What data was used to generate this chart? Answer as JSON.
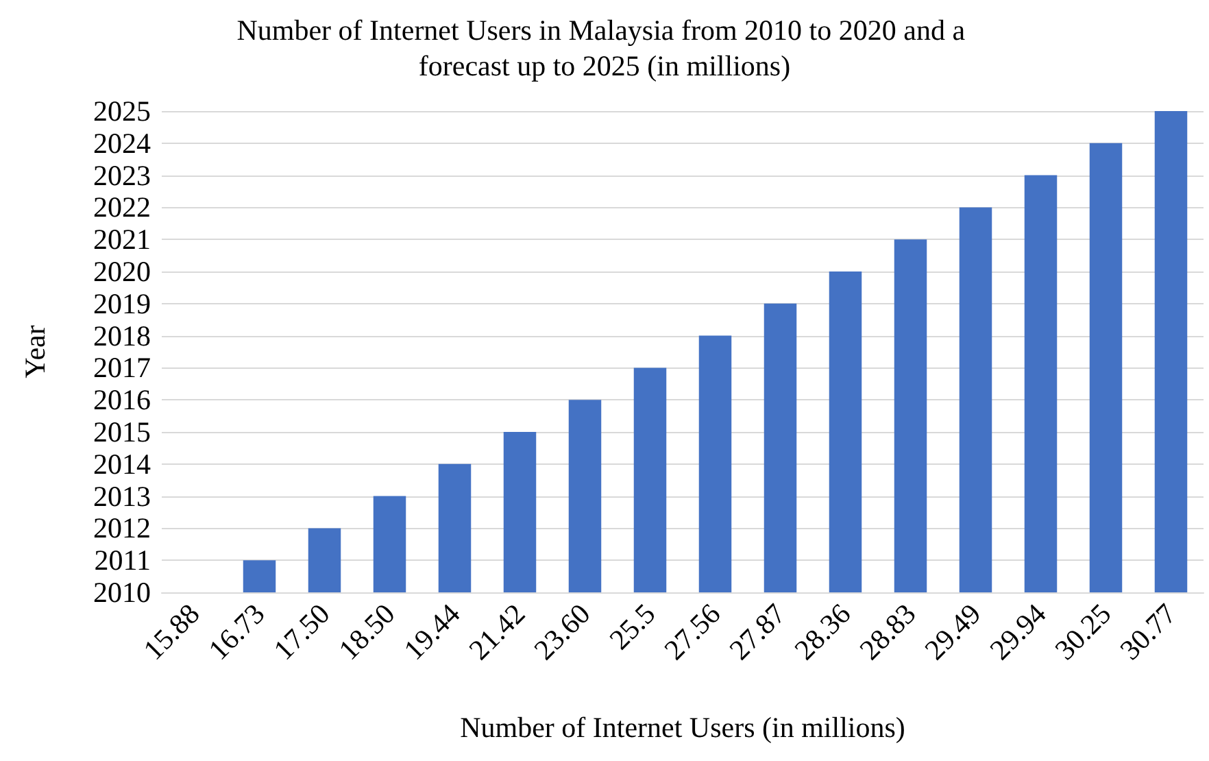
{
  "chart_data": {
    "type": "bar",
    "title": "Number of Internet Users in Malaysia from 2010 to 2020 and a forecast up to 2025 (in millions)",
    "xlabel": "Number of Internet Users (in millions)",
    "ylabel": "Year",
    "categories": [
      "15.88",
      "16.73",
      "17.50",
      "18.50",
      "19.44",
      "21.42",
      "23.60",
      "25.5",
      "27.56",
      "27.87",
      "28.36",
      "28.83",
      "29.49",
      "29.94",
      "30.25",
      "30.77"
    ],
    "values": [
      2010,
      2011,
      2012,
      2013,
      2014,
      2015,
      2016,
      2017,
      2018,
      2019,
      2020,
      2021,
      2022,
      2023,
      2024,
      2025
    ],
    "color": "#4472c4",
    "ylim": [
      2010,
      2025
    ],
    "yticks": [
      2010,
      2011,
      2012,
      2013,
      2014,
      2015,
      2016,
      2017,
      2018,
      2019,
      2020,
      2021,
      2022,
      2023,
      2024,
      2025
    ],
    "grid": "y"
  }
}
